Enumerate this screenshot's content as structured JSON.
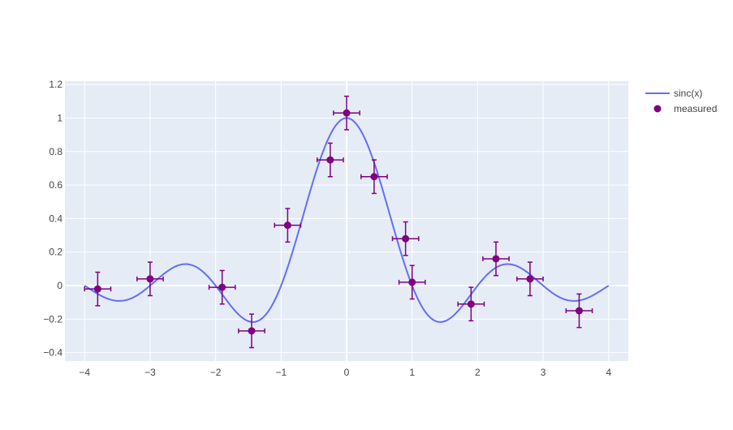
{
  "chart_data": {
    "type": "scatter",
    "title": "",
    "xlabel": "",
    "ylabel": "",
    "xlim": [
      -4.3,
      4.3
    ],
    "ylim": [
      -0.45,
      1.22
    ],
    "x_ticks": [
      -4,
      -3,
      -2,
      -1,
      0,
      1,
      2,
      3,
      4
    ],
    "x_tick_labels": [
      "−4",
      "−3",
      "−2",
      "−1",
      "0",
      "1",
      "2",
      "3",
      "4"
    ],
    "y_ticks": [
      -0.4,
      -0.2,
      0,
      0.2,
      0.4,
      0.6,
      0.8,
      1,
      1.2
    ],
    "y_tick_labels": [
      "−0.4",
      "−0.2",
      "0",
      "0.2",
      "0.4",
      "0.6",
      "0.8",
      "1",
      "1.2"
    ],
    "grid": true,
    "legend_position": "top-right",
    "series": [
      {
        "name": "sinc(x)",
        "kind": "line",
        "color": "#636efa",
        "function": "sinc",
        "x_range": [
          -4,
          4
        ]
      },
      {
        "name": "measured",
        "kind": "markers",
        "color": "#800080",
        "x_error": 0.2,
        "y_error": 0.1,
        "points": [
          {
            "x": -3.8,
            "y": -0.02
          },
          {
            "x": -3.0,
            "y": 0.04
          },
          {
            "x": -1.9,
            "y": -0.01
          },
          {
            "x": -1.45,
            "y": -0.27
          },
          {
            "x": -0.9,
            "y": 0.36
          },
          {
            "x": -0.25,
            "y": 0.75
          },
          {
            "x": 0.0,
            "y": 1.03
          },
          {
            "x": 0.42,
            "y": 0.65
          },
          {
            "x": 0.9,
            "y": 0.28
          },
          {
            "x": 1.0,
            "y": 0.02
          },
          {
            "x": 1.9,
            "y": -0.11
          },
          {
            "x": 2.28,
            "y": 0.16
          },
          {
            "x": 2.8,
            "y": 0.04
          },
          {
            "x": 3.55,
            "y": -0.15
          }
        ]
      }
    ]
  },
  "colors": {
    "plot_background": "#e5ecf6",
    "grid": "#ffffff",
    "text": "#444444"
  }
}
